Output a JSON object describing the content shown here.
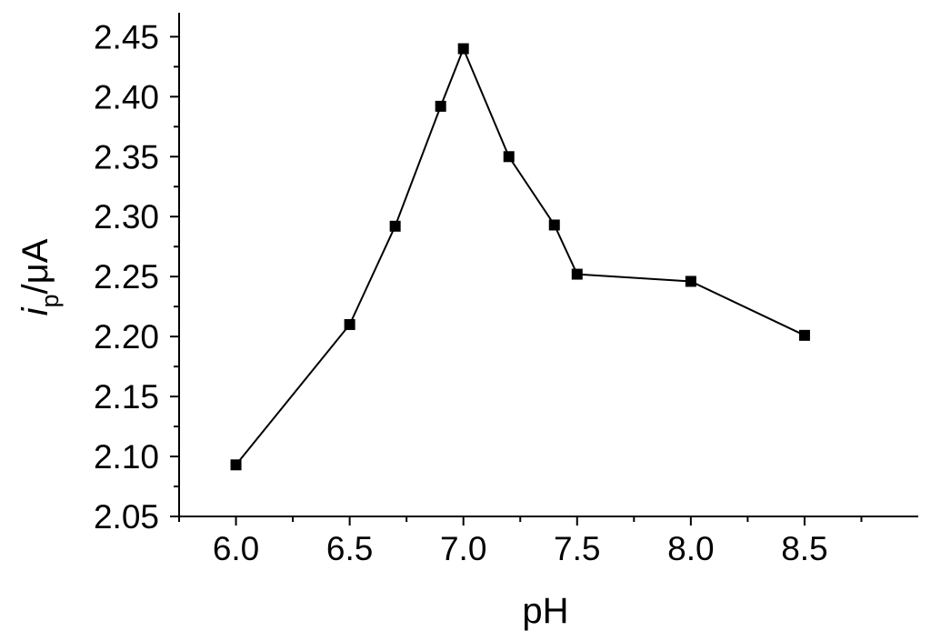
{
  "chart_data": {
    "type": "line",
    "xlabel": "pH",
    "ylabel_main": "i",
    "ylabel_sub": "p",
    "ylabel_unit": "/μA",
    "xlim": [
      5.75,
      9.0
    ],
    "ylim": [
      2.05,
      2.47
    ],
    "xticks": [
      6.0,
      6.5,
      7.0,
      7.5,
      8.0,
      8.5
    ],
    "xtick_labels": [
      "6.0",
      "6.5",
      "7.0",
      "7.5",
      "8.0",
      "8.5"
    ],
    "yticks": [
      2.05,
      2.1,
      2.15,
      2.2,
      2.25,
      2.3,
      2.35,
      2.4,
      2.45
    ],
    "ytick_labels": [
      "2.05",
      "2.10",
      "2.15",
      "2.20",
      "2.25",
      "2.30",
      "2.35",
      "2.40",
      "2.45"
    ],
    "marker": "square",
    "color": "#000000",
    "grid": false,
    "series": [
      {
        "x": [
          6.0,
          6.5,
          6.7,
          6.9,
          7.0,
          7.2,
          7.4,
          7.5,
          8.0,
          8.5
        ],
        "y": [
          2.093,
          2.21,
          2.292,
          2.392,
          2.44,
          2.35,
          2.293,
          2.252,
          2.246,
          2.201
        ]
      }
    ]
  }
}
